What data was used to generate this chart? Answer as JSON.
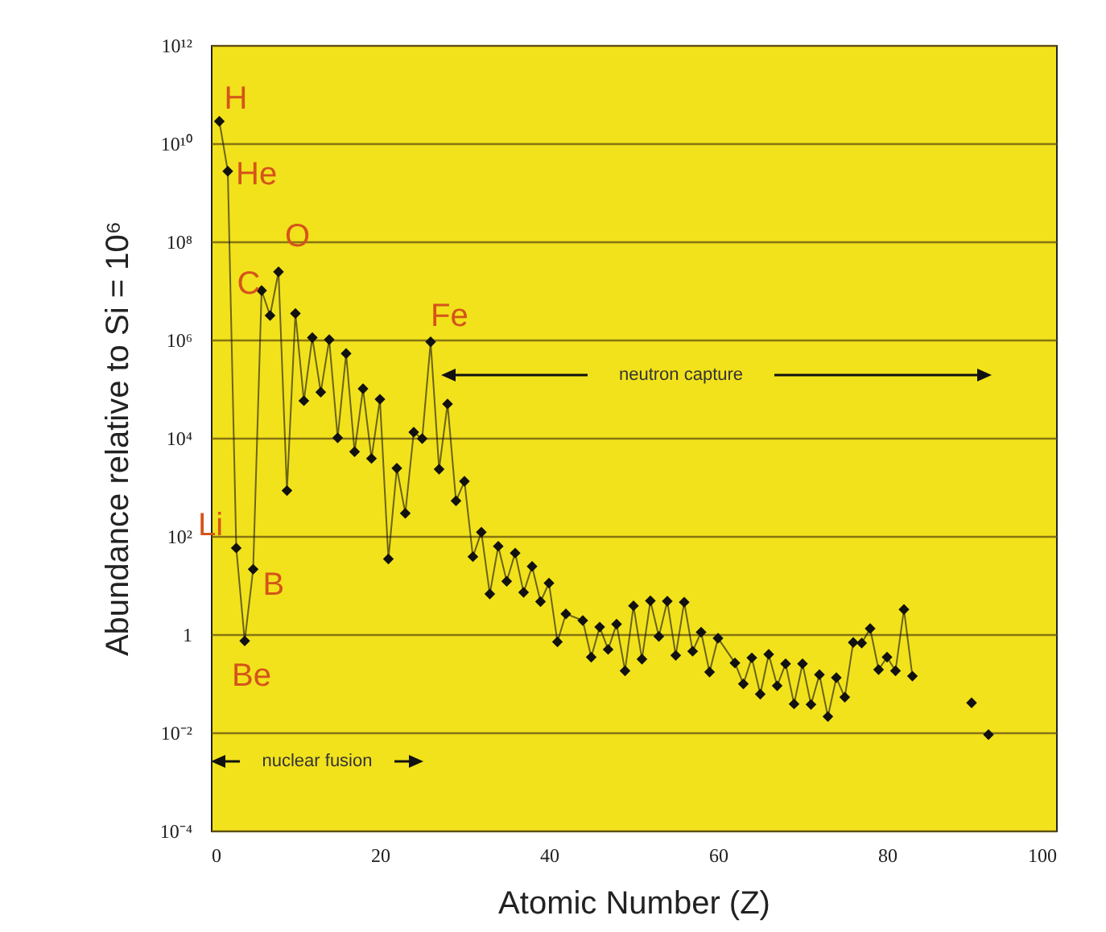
{
  "chart_data": {
    "type": "line",
    "xlabel": "Atomic Number (Z)",
    "ylabel": "Abundance relative to Si = 10⁶",
    "xlim": [
      0,
      100
    ],
    "xticks": [
      0,
      20,
      40,
      60,
      80,
      100
    ],
    "ylim": [
      0.0001,
      1000000000000
    ],
    "log": "y",
    "grid": "y",
    "marker": "diamond",
    "yticks": [
      {
        "value": 0.0001,
        "label": "10⁻⁴"
      },
      {
        "value": 0.01,
        "label": "10⁻²"
      },
      1,
      {
        "value": 100,
        "label": "10²"
      },
      {
        "value": 10000,
        "label": "10⁴"
      },
      {
        "value": 1000000,
        "label": "10⁶"
      },
      {
        "value": 100000000,
        "label": "10⁸"
      },
      {
        "value": 10000000000,
        "label": "10¹⁰"
      },
      {
        "value": 1000000000000,
        "label": "10¹²"
      }
    ],
    "series": [
      {
        "color": "#111111",
        "x": [
          1,
          2,
          3,
          4,
          5,
          6,
          7,
          8,
          9,
          10,
          11,
          12,
          13,
          14,
          15,
          16,
          17,
          18,
          19,
          20,
          21,
          22,
          23,
          24,
          25,
          26,
          27,
          28,
          29,
          30,
          31,
          32,
          33,
          34,
          35,
          36,
          37,
          38,
          39,
          40,
          41,
          42,
          44,
          45,
          46,
          47,
          48,
          49,
          50,
          51,
          52,
          53,
          54,
          55,
          56,
          57,
          58,
          59,
          60,
          62,
          63,
          64,
          65,
          66,
          67,
          68,
          69,
          70,
          71,
          72,
          73,
          74,
          75,
          76,
          77,
          78,
          79,
          80,
          81,
          82,
          83
        ],
        "values": [
          28000000000,
          2700000000,
          57,
          0.73,
          21,
          10000000,
          3100000,
          24000000,
          840,
          3400000,
          57000,
          1100000,
          85000,
          1000000,
          10000,
          520000,
          5200,
          100000,
          3800,
          61000,
          34,
          2400,
          290,
          13000,
          9600,
          900000,
          2300,
          49000,
          520,
          1300,
          38,
          120,
          6.6,
          62,
          12,
          45,
          7.1,
          24,
          4.6,
          11,
          0.7,
          2.6,
          1.9,
          0.34,
          1.4,
          0.49,
          1.6,
          0.18,
          3.8,
          0.31,
          4.8,
          0.9,
          4.7,
          0.37,
          4.5,
          0.45,
          1.1,
          0.17,
          0.83,
          0.26,
          0.097,
          0.33,
          0.06,
          0.39,
          0.089,
          0.25,
          0.038,
          0.25,
          0.037,
          0.15,
          0.021,
          0.13,
          0.052,
          0.68,
          0.66,
          1.3,
          0.19,
          0.34,
          0.18,
          3.2,
          0.14
        ]
      },
      {
        "type": "scatter",
        "color": "#111111",
        "x": [
          90,
          92
        ],
        "values": [
          0.04,
          0.009
        ]
      }
    ],
    "annotations": [
      {
        "text": "H",
        "x": 1,
        "y": 28000000000
      },
      {
        "text": "He",
        "x": 2,
        "y": 2700000000
      },
      {
        "text": "C",
        "x": 6,
        "y": 10000000
      },
      {
        "text": "O",
        "x": 8,
        "y": 24000000
      },
      {
        "text": "Fe",
        "x": 26,
        "y": 900000
      },
      {
        "text": "Li",
        "x": 3,
        "y": 57
      },
      {
        "text": "B",
        "x": 5,
        "y": 21
      },
      {
        "text": "Be",
        "x": 4,
        "y": 0.73
      },
      "nuclear fusion",
      "neutron capture"
    ]
  }
}
